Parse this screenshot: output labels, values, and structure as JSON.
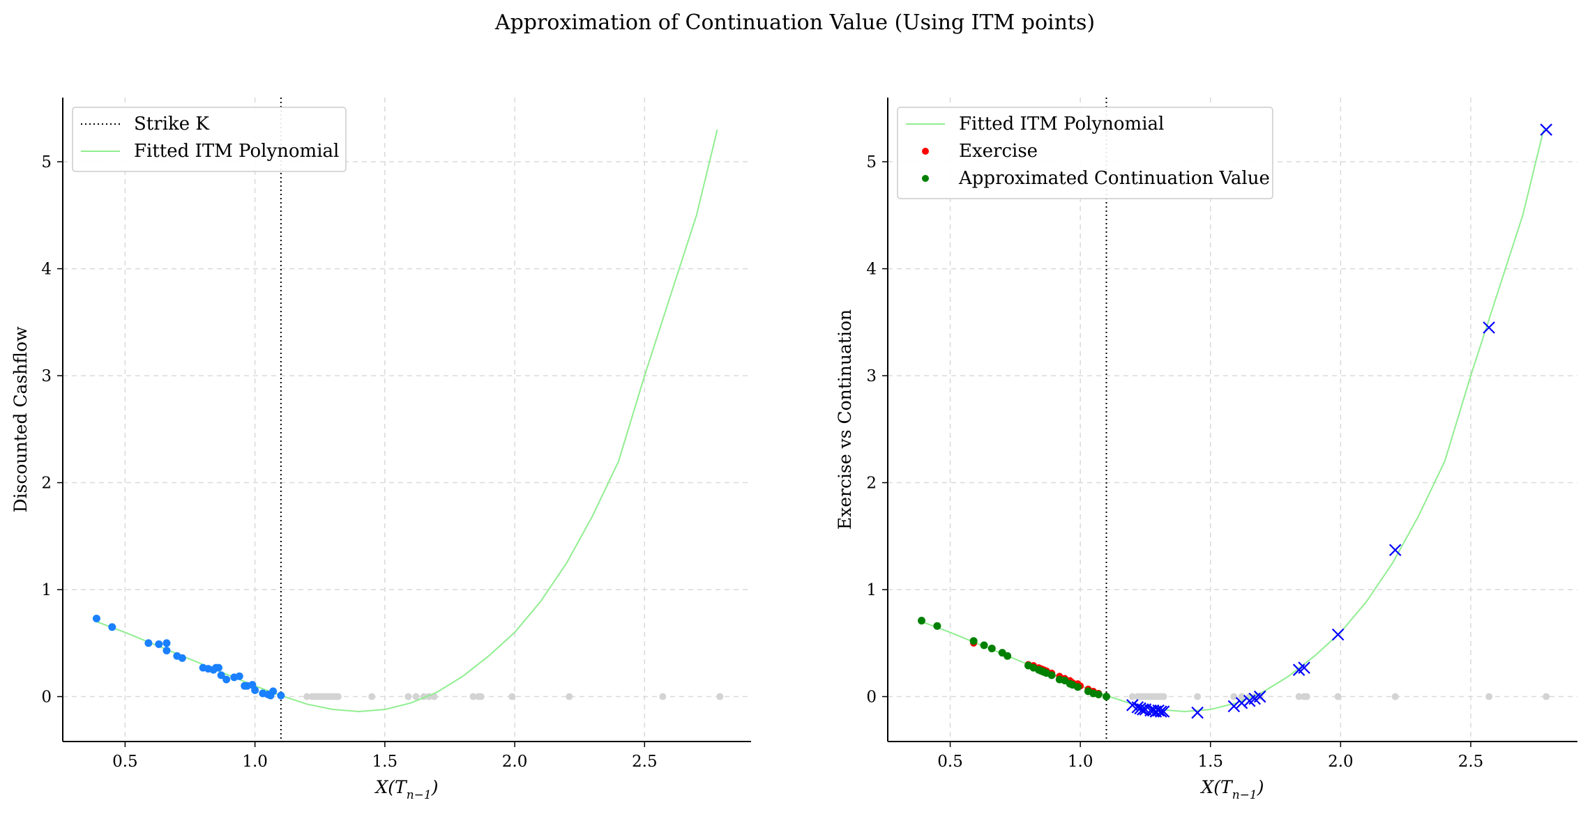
{
  "title": "Approximation of Continuation Value (Using ITM points)",
  "colors": {
    "itm_points": "#1a80ff",
    "otm_points": "#d3d3d3",
    "fit_line": "#90ee90",
    "exercise": "#ff0000",
    "continuation": "#008000",
    "cross": "#0000ff",
    "strike": "#000000",
    "grid": "#d9d9d9"
  },
  "chart_data": [
    {
      "type": "scatter",
      "xlabel": "X(T_{n−1})",
      "xlabel_main": "X(T",
      "xlabel_sub": "n−1",
      "xlabel_close": ")",
      "ylabel": "Discounted Cashflow",
      "xlim": [
        0.26,
        2.91
      ],
      "ylim": [
        -0.42,
        5.6
      ],
      "xticks": [
        0.5,
        1.0,
        1.5,
        2.0,
        2.5
      ],
      "xtick_labels": [
        "0.5",
        "1.0",
        "1.5",
        "2.0",
        "2.5"
      ],
      "yticks": [
        0,
        1,
        2,
        3,
        4,
        5
      ],
      "ytick_labels": [
        "0",
        "1",
        "2",
        "3",
        "4",
        "5"
      ],
      "grid": true,
      "legend_position": "top-left",
      "legend": [
        "Strike K",
        "Fitted ITM Polynomial"
      ],
      "strike": 1.1,
      "fit_curve": {
        "x": [
          0.38,
          0.5,
          0.6,
          0.7,
          0.8,
          0.9,
          1.0,
          1.1,
          1.2,
          1.3,
          1.4,
          1.5,
          1.6,
          1.7,
          1.8,
          1.9,
          2.0,
          2.1,
          2.2,
          2.3,
          2.4,
          2.5,
          2.6,
          2.7,
          2.78
        ],
        "y": [
          0.71,
          0.6,
          0.5,
          0.4,
          0.3,
          0.2,
          0.1,
          0.01,
          -0.07,
          -0.12,
          -0.14,
          -0.12,
          -0.06,
          0.04,
          0.19,
          0.38,
          0.6,
          0.89,
          1.25,
          1.69,
          2.2,
          3.0,
          3.75,
          4.5,
          5.3
        ]
      },
      "itm_points": {
        "x": [
          0.39,
          0.45,
          0.59,
          0.63,
          0.66,
          0.66,
          0.7,
          0.72,
          0.8,
          0.82,
          0.84,
          0.85,
          0.86,
          0.87,
          0.89,
          0.92,
          0.94,
          0.96,
          0.97,
          0.99,
          1.0,
          1.03,
          1.05,
          1.06,
          1.07,
          1.1
        ],
        "y": [
          0.73,
          0.65,
          0.5,
          0.49,
          0.5,
          0.43,
          0.38,
          0.36,
          0.27,
          0.26,
          0.25,
          0.27,
          0.27,
          0.2,
          0.16,
          0.18,
          0.19,
          0.1,
          0.1,
          0.11,
          0.06,
          0.03,
          0.02,
          0.01,
          0.05,
          0.01
        ]
      },
      "otm_points": {
        "x": [
          1.2,
          1.22,
          1.23,
          1.24,
          1.25,
          1.26,
          1.27,
          1.28,
          1.29,
          1.3,
          1.31,
          1.32,
          1.45,
          1.59,
          1.62,
          1.65,
          1.67,
          1.69,
          1.84,
          1.86,
          1.87,
          1.99,
          2.21,
          2.57,
          2.79
        ],
        "y": [
          0,
          0,
          0,
          0,
          0,
          0,
          0,
          0,
          0,
          0,
          0,
          0,
          0,
          0,
          0,
          0,
          0,
          0,
          0,
          0,
          0,
          0,
          0,
          0,
          0
        ]
      }
    },
    {
      "type": "scatter",
      "xlabel": "X(T_{n−1})",
      "xlabel_main": "X(T",
      "xlabel_sub": "n−1",
      "xlabel_close": ")",
      "ylabel": "Exercise vs Continuation",
      "xlim": [
        0.26,
        2.91
      ],
      "ylim": [
        -0.42,
        5.6
      ],
      "xticks": [
        0.5,
        1.0,
        1.5,
        2.0,
        2.5
      ],
      "xtick_labels": [
        "0.5",
        "1.0",
        "1.5",
        "2.0",
        "2.5"
      ],
      "yticks": [
        0,
        1,
        2,
        3,
        4,
        5
      ],
      "ytick_labels": [
        "0",
        "1",
        "2",
        "3",
        "4",
        "5"
      ],
      "grid": true,
      "legend_position": "top-left",
      "legend": [
        "Fitted ITM Polynomial",
        "Exercise",
        "Approximated Continuation Value"
      ],
      "strike": 1.1,
      "fit_curve": {
        "x": [
          0.38,
          0.5,
          0.6,
          0.7,
          0.8,
          0.9,
          1.0,
          1.1,
          1.2,
          1.3,
          1.4,
          1.5,
          1.6,
          1.7,
          1.8,
          1.9,
          2.0,
          2.1,
          2.2,
          2.3,
          2.4,
          2.5,
          2.6,
          2.7,
          2.78
        ],
        "y": [
          0.71,
          0.6,
          0.5,
          0.4,
          0.3,
          0.2,
          0.1,
          0.01,
          -0.07,
          -0.12,
          -0.14,
          -0.12,
          -0.06,
          0.04,
          0.19,
          0.38,
          0.6,
          0.89,
          1.25,
          1.69,
          2.2,
          3.0,
          3.75,
          4.5,
          5.3
        ]
      },
      "exercise_points": {
        "x": [
          0.59,
          0.8,
          0.82,
          0.84,
          0.85,
          0.86,
          0.87,
          0.89,
          0.92,
          0.94,
          0.96,
          0.97,
          0.99,
          1.0,
          1.03,
          1.05,
          1.07
        ],
        "y": [
          0.5,
          0.3,
          0.29,
          0.27,
          0.26,
          0.25,
          0.24,
          0.22,
          0.19,
          0.17,
          0.15,
          0.13,
          0.12,
          0.1,
          0.07,
          0.05,
          0.03
        ]
      },
      "continuation_points": {
        "x": [
          0.39,
          0.45,
          0.59,
          0.63,
          0.66,
          0.7,
          0.72,
          0.8,
          0.82,
          0.84,
          0.85,
          0.86,
          0.87,
          0.89,
          0.92,
          0.94,
          0.96,
          0.97,
          0.99,
          1.03,
          1.05,
          1.07,
          1.1
        ],
        "y": [
          0.71,
          0.66,
          0.52,
          0.48,
          0.45,
          0.41,
          0.38,
          0.29,
          0.27,
          0.25,
          0.24,
          0.23,
          0.22,
          0.2,
          0.16,
          0.15,
          0.12,
          0.11,
          0.09,
          0.05,
          0.03,
          0.02,
          0.0
        ]
      },
      "cross_points": {
        "x": [
          1.2,
          1.22,
          1.23,
          1.24,
          1.25,
          1.27,
          1.28,
          1.29,
          1.3,
          1.31,
          1.32,
          1.45,
          1.59,
          1.62,
          1.65,
          1.67,
          1.69,
          1.84,
          1.86,
          1.99,
          2.21,
          2.57,
          2.79
        ],
        "y": [
          -0.08,
          -0.1,
          -0.11,
          -0.12,
          -0.12,
          -0.13,
          -0.13,
          -0.14,
          -0.13,
          -0.14,
          -0.14,
          -0.15,
          -0.09,
          -0.06,
          -0.04,
          -0.02,
          0.0,
          0.25,
          0.27,
          0.58,
          1.37,
          3.45,
          5.3
        ]
      },
      "otm_points": {
        "x": [
          1.2,
          1.22,
          1.23,
          1.24,
          1.25,
          1.26,
          1.27,
          1.28,
          1.29,
          1.3,
          1.31,
          1.32,
          1.45,
          1.59,
          1.62,
          1.65,
          1.67,
          1.69,
          1.84,
          1.86,
          1.87,
          1.99,
          2.21,
          2.57,
          2.79
        ],
        "y": [
          0,
          0,
          0,
          0,
          0,
          0,
          0,
          0,
          0,
          0,
          0,
          0,
          0,
          0,
          0,
          0,
          0,
          0,
          0,
          0,
          0,
          0,
          0,
          0,
          0
        ]
      }
    }
  ]
}
